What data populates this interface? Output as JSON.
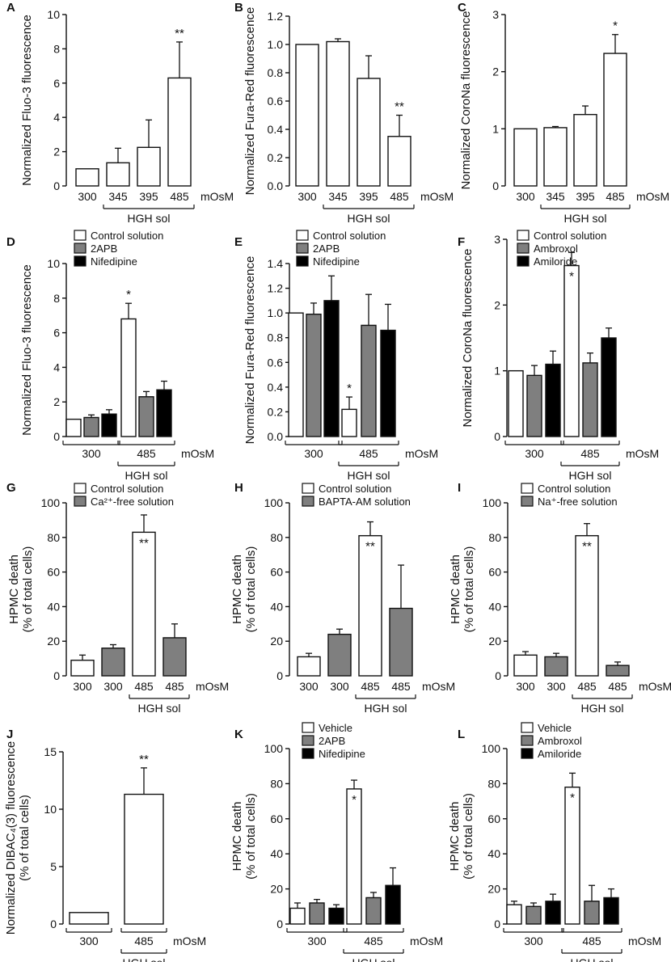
{
  "colors": {
    "control": "#ffffff",
    "gray": "#7f7f7f",
    "black": "#000000",
    "ink": "#111111"
  },
  "chart_data": [
    {
      "id": "A",
      "type": "bar",
      "letter": "A",
      "ylabel": "Normalized Fluo-3 fluorescence",
      "ylim": [
        0,
        10
      ],
      "yticks": [
        "0",
        "2",
        "4",
        "6",
        "8",
        "10"
      ],
      "unit": "mOsM",
      "categories": [
        "300",
        "345",
        "395",
        "485"
      ],
      "groups": [
        {
          "label": "HGH sol",
          "from": 1,
          "to": 3
        }
      ],
      "series": [
        {
          "name": "",
          "color": "control",
          "values": [
            1.0,
            1.35,
            2.25,
            6.3
          ],
          "errors": [
            0,
            0.85,
            1.6,
            2.1
          ],
          "sig": [
            "",
            "",
            "",
            "**"
          ]
        }
      ]
    },
    {
      "id": "B",
      "type": "bar",
      "letter": "B",
      "ylabel": "Normalized Fura-Red fluorescence",
      "ylim": [
        0,
        1.2
      ],
      "yticks": [
        "0.0",
        "0.2",
        "0.4",
        "0.6",
        "0.8",
        "1.0",
        "1.2"
      ],
      "unit": "mOsM",
      "categories": [
        "300",
        "345",
        "395",
        "485"
      ],
      "groups": [
        {
          "label": "HGH sol",
          "from": 1,
          "to": 3
        }
      ],
      "series": [
        {
          "name": "",
          "color": "control",
          "values": [
            1.0,
            1.02,
            0.76,
            0.35
          ],
          "errors": [
            0,
            0.02,
            0.16,
            0.15
          ],
          "sig": [
            "",
            "",
            "",
            "**"
          ]
        }
      ]
    },
    {
      "id": "C",
      "type": "bar",
      "letter": "C",
      "ylabel": "Normalized CoroNa fluorescence",
      "ylim": [
        0,
        3
      ],
      "yticks": [
        "0",
        "1",
        "2",
        "3"
      ],
      "unit": "mOsM",
      "categories": [
        "300",
        "345",
        "395",
        "485"
      ],
      "groups": [
        {
          "label": "HGH sol",
          "from": 1,
          "to": 3
        }
      ],
      "series": [
        {
          "name": "",
          "color": "control",
          "values": [
            1.0,
            1.02,
            1.25,
            2.32
          ],
          "errors": [
            0,
            0.02,
            0.15,
            0.33
          ],
          "sig": [
            "",
            "",
            "",
            "*"
          ]
        }
      ]
    },
    {
      "id": "D",
      "type": "bar",
      "letter": "D",
      "ylabel": "Normalized Fluo-3 fluorescence",
      "ylim": [
        0,
        10
      ],
      "yticks": [
        "0",
        "2",
        "4",
        "6",
        "8",
        "10"
      ],
      "unit": "mOsM",
      "categories": [
        "300",
        "485"
      ],
      "groups": [
        {
          "label": "HGH sol",
          "from": 1,
          "to": 1
        }
      ],
      "series": [
        {
          "name": "Control solution",
          "color": "control",
          "values": [
            1.0,
            6.8
          ],
          "errors": [
            0,
            0.9
          ],
          "sig": [
            "",
            "*"
          ]
        },
        {
          "name": "2APB",
          "color": "gray",
          "values": [
            1.1,
            2.3
          ],
          "errors": [
            0.15,
            0.3
          ],
          "sig": [
            "",
            ""
          ]
        },
        {
          "name": "Nifedipine",
          "color": "black",
          "values": [
            1.3,
            2.7
          ],
          "errors": [
            0.25,
            0.5
          ],
          "sig": [
            "",
            ""
          ]
        }
      ]
    },
    {
      "id": "E",
      "type": "bar",
      "letter": "E",
      "ylabel": "Normalized Fura-Red fluorescence",
      "ylim": [
        0,
        1.4
      ],
      "yticks": [
        "0.0",
        "0.2",
        "0.4",
        "0.6",
        "0.8",
        "1.0",
        "1.2",
        "1.4"
      ],
      "unit": "mOsM",
      "categories": [
        "300",
        "485"
      ],
      "groups": [
        {
          "label": "HGH sol",
          "from": 1,
          "to": 1
        }
      ],
      "series": [
        {
          "name": "Control solution",
          "color": "control",
          "values": [
            1.0,
            0.22
          ],
          "errors": [
            0,
            0.1
          ],
          "sig": [
            "",
            "*"
          ]
        },
        {
          "name": "2APB",
          "color": "gray",
          "values": [
            0.99,
            0.9
          ],
          "errors": [
            0.09,
            0.25
          ],
          "sig": [
            "",
            ""
          ]
        },
        {
          "name": "Nifedipine",
          "color": "black",
          "values": [
            1.1,
            0.86
          ],
          "errors": [
            0.2,
            0.21
          ],
          "sig": [
            "",
            ""
          ]
        }
      ]
    },
    {
      "id": "F",
      "type": "bar",
      "letter": "F",
      "ylabel": "Normalized CoroNa fluorescence",
      "ylim": [
        0,
        3
      ],
      "yticks": [
        "0",
        "1",
        "2",
        "3"
      ],
      "unit": "mOsM",
      "categories": [
        "300",
        "485"
      ],
      "groups": [
        {
          "label": "HGH sol",
          "from": 1,
          "to": 1
        }
      ],
      "series": [
        {
          "name": "Control solution",
          "color": "control",
          "values": [
            1.0,
            2.6
          ],
          "errors": [
            0,
            0.2
          ],
          "sig": [
            "",
            "*"
          ],
          "sigInside": true
        },
        {
          "name": "Ambroxol",
          "color": "gray",
          "values": [
            0.93,
            1.12
          ],
          "errors": [
            0.15,
            0.15
          ],
          "sig": [
            "",
            ""
          ]
        },
        {
          "name": "Amiloride",
          "color": "black",
          "values": [
            1.1,
            1.5
          ],
          "errors": [
            0.2,
            0.15
          ],
          "sig": [
            "",
            ""
          ]
        }
      ]
    },
    {
      "id": "G",
      "type": "bar",
      "letter": "G",
      "ylabel": "HPMC death",
      "ylabel2": "(% of total cells)",
      "ylim": [
        0,
        100
      ],
      "yticks": [
        "0",
        "20",
        "40",
        "60",
        "80",
        "100"
      ],
      "unit": "mOsM",
      "categories": [
        "300",
        "300",
        "485",
        "485"
      ],
      "groups": [
        {
          "label": "HGH sol",
          "from": 2,
          "to": 3
        }
      ],
      "legend": [
        {
          "name": "Control solution",
          "color": "control"
        },
        {
          "name": "Ca²⁺-free solution",
          "color": "gray"
        }
      ],
      "series": [
        {
          "name": "",
          "values": [
            9,
            16,
            83,
            22
          ],
          "errors": [
            3,
            2,
            10,
            8
          ],
          "sig": [
            "",
            "",
            "**",
            ""
          ],
          "sigInside": true,
          "colors": [
            "control",
            "gray",
            "control",
            "gray"
          ]
        }
      ]
    },
    {
      "id": "H",
      "type": "bar",
      "letter": "H",
      "ylabel": "HPMC death",
      "ylabel2": "(% of total cells)",
      "ylim": [
        0,
        100
      ],
      "yticks": [
        "0",
        "20",
        "40",
        "60",
        "80",
        "100"
      ],
      "unit": "mOsM",
      "categories": [
        "300",
        "300",
        "485",
        "485"
      ],
      "groups": [
        {
          "label": "HGH sol",
          "from": 2,
          "to": 3
        }
      ],
      "legend": [
        {
          "name": "Control solution",
          "color": "control"
        },
        {
          "name": "BAPTA-AM solution",
          "color": "gray"
        }
      ],
      "series": [
        {
          "name": "",
          "values": [
            11,
            24,
            81,
            39
          ],
          "errors": [
            2,
            3,
            8,
            25
          ],
          "sig": [
            "",
            "",
            "**",
            ""
          ],
          "sigInside": true,
          "colors": [
            "control",
            "gray",
            "control",
            "gray"
          ]
        }
      ]
    },
    {
      "id": "I",
      "type": "bar",
      "letter": "I",
      "ylabel": "HPMC death",
      "ylabel2": "(% of total cells)",
      "ylim": [
        0,
        100
      ],
      "yticks": [
        "0",
        "20",
        "40",
        "60",
        "80",
        "100"
      ],
      "unit": "mOsM",
      "categories": [
        "300",
        "300",
        "485",
        "485"
      ],
      "groups": [
        {
          "label": "HGH sol",
          "from": 2,
          "to": 3
        }
      ],
      "legend": [
        {
          "name": "Control solution",
          "color": "control"
        },
        {
          "name": "Na⁺-free solution",
          "color": "gray"
        }
      ],
      "series": [
        {
          "name": "",
          "values": [
            12,
            11,
            81,
            6
          ],
          "errors": [
            2,
            2,
            7,
            2
          ],
          "sig": [
            "",
            "",
            "**",
            ""
          ],
          "sigInside": true,
          "colors": [
            "control",
            "gray",
            "control",
            "gray"
          ]
        }
      ]
    },
    {
      "id": "J",
      "type": "bar",
      "letter": "J",
      "ylabel": "Normalized DIBAC₄(3) fluorescence",
      "ylabel2": "(% of total cells)",
      "ylim": [
        0,
        15
      ],
      "yticks": [
        "0",
        "5",
        "10",
        "15"
      ],
      "unit": "mOsM",
      "categories": [
        "300",
        "485"
      ],
      "groups": [
        {
          "label": "HGH sol",
          "from": 1,
          "to": 1
        }
      ],
      "series": [
        {
          "name": "",
          "color": "control",
          "values": [
            1.0,
            11.3
          ],
          "errors": [
            0,
            2.3
          ],
          "sig": [
            "",
            "**"
          ]
        }
      ]
    },
    {
      "id": "K",
      "type": "bar",
      "letter": "K",
      "ylabel": "HPMC death",
      "ylabel2": "(% of total cells)",
      "ylim": [
        0,
        100
      ],
      "yticks": [
        "0",
        "20",
        "40",
        "60",
        "80",
        "100"
      ],
      "unit": "mOsM",
      "categories": [
        "300",
        "485"
      ],
      "groups": [
        {
          "label": "HGH sol",
          "from": 1,
          "to": 1
        }
      ],
      "series": [
        {
          "name": "Vehicle",
          "color": "control",
          "values": [
            9,
            77
          ],
          "errors": [
            3,
            5
          ],
          "sig": [
            "",
            "*"
          ],
          "sigInside": true
        },
        {
          "name": "2APB",
          "color": "gray",
          "values": [
            12,
            15
          ],
          "errors": [
            2,
            3
          ],
          "sig": [
            "",
            ""
          ]
        },
        {
          "name": "Nifedipine",
          "color": "black",
          "values": [
            9,
            22
          ],
          "errors": [
            2,
            10
          ],
          "sig": [
            "",
            ""
          ]
        }
      ]
    },
    {
      "id": "L",
      "type": "bar",
      "letter": "L",
      "ylabel": "HPMC death",
      "ylabel2": "(% of total cells)",
      "ylim": [
        0,
        100
      ],
      "yticks": [
        "0",
        "20",
        "40",
        "60",
        "80",
        "100"
      ],
      "unit": "mOsM",
      "categories": [
        "300",
        "485"
      ],
      "groups": [
        {
          "label": "HGH sol",
          "from": 1,
          "to": 1
        }
      ],
      "series": [
        {
          "name": "Vehicle",
          "color": "control",
          "values": [
            11,
            78
          ],
          "errors": [
            2,
            8
          ],
          "sig": [
            "",
            "*"
          ],
          "sigInside": true
        },
        {
          "name": "Ambroxol",
          "color": "gray",
          "values": [
            10,
            13
          ],
          "errors": [
            2,
            9
          ],
          "sig": [
            "",
            ""
          ]
        },
        {
          "name": "Amiloride",
          "color": "black",
          "values": [
            13,
            15
          ],
          "errors": [
            4,
            5
          ],
          "sig": [
            "",
            ""
          ]
        }
      ]
    }
  ]
}
